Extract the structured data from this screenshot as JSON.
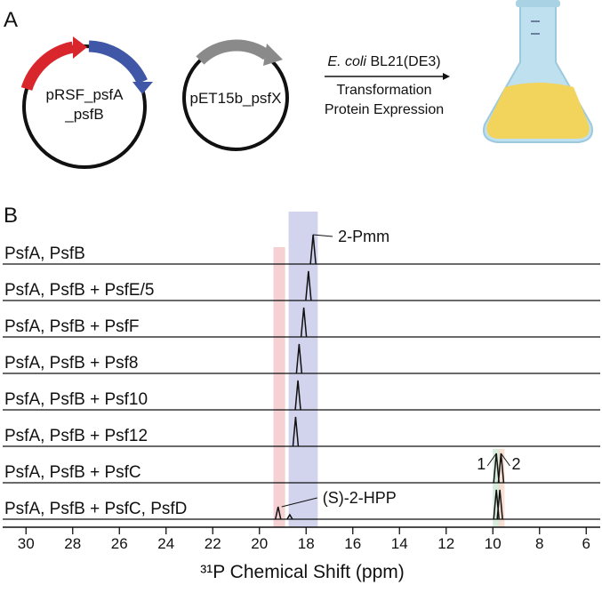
{
  "panel_a": {
    "label": "A",
    "plasmid_1": "pRSF_psfA",
    "plasmid_1_line2": "_psfB",
    "plasmid_2": "pET15b_psfX",
    "host_italic": "E. coli",
    "host": "BL21(DE3)",
    "step_1": "Transformation",
    "step_2": "Protein Expression"
  },
  "chart_data": {
    "type": "spectrum",
    "panel_label": "B",
    "xlabel": "³¹P Chemical Shift (ppm)",
    "xlim": [
      31,
      5.4
    ],
    "xticks": [
      30,
      28,
      26,
      24,
      22,
      20,
      18,
      16,
      14,
      12,
      10,
      8,
      6
    ],
    "bands": [
      {
        "from": 19.4,
        "to": 18.9,
        "color": "#f5c9cb"
      },
      {
        "from": 18.75,
        "to": 17.5,
        "color": "#c9cde9"
      },
      {
        "from": 10.0,
        "to": 9.7,
        "color": "#cfe9d6"
      },
      {
        "from": 9.75,
        "to": 9.5,
        "color": "#f5d9cb"
      }
    ],
    "series": [
      {
        "name": "PsfA, PsfB",
        "peaks": [
          17.7
        ]
      },
      {
        "name": "PsfA, PsfB + PsfE/5",
        "peaks": [
          17.9
        ]
      },
      {
        "name": "PsfA, PsfB + PsfF",
        "peaks": [
          18.1
        ]
      },
      {
        "name": "PsfA, PsfB + Psf8",
        "peaks": [
          18.3
        ]
      },
      {
        "name": "PsfA, PsfB + Psf10",
        "peaks": [
          18.35
        ]
      },
      {
        "name": "PsfA, PsfB + Psf12",
        "peaks": [
          18.45
        ]
      },
      {
        "name": "PsfA, PsfB + PsfC",
        "peaks": [
          9.85,
          9.65
        ]
      },
      {
        "name": "PsfA, PsfB + PsfC, PsfD",
        "peaks": [
          19.2,
          18.7,
          9.85,
          9.7
        ]
      }
    ],
    "annotations": {
      "pmm": "2-Pmm",
      "peak_1": "1",
      "peak_2": "2",
      "hpp": "(S)-2-HPP"
    }
  }
}
